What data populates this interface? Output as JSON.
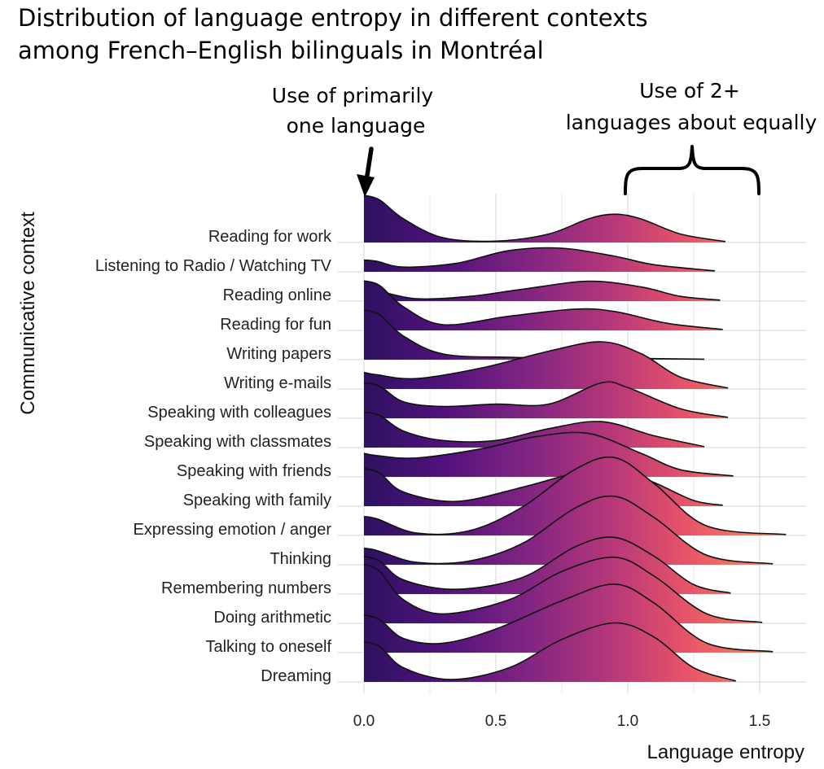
{
  "chart_data": {
    "type": "ridgeline",
    "title": [
      "Distribution of language entropy in different contexts",
      "among French–English bilinguals in Montréal"
    ],
    "xlabel": "Language entropy",
    "ylabel": "Communicative context",
    "xlim": [
      0.0,
      1.68
    ],
    "xticks": [
      0.0,
      0.5,
      1.0,
      1.5
    ],
    "xtick_labels": [
      "0.0",
      "0.5",
      "1.0",
      "1.5"
    ],
    "grid": true,
    "fill": "gradient along x from #2d1160 (low entropy) through #b63779 to #fd7a5c (high entropy)",
    "annotations": [
      {
        "lines": [
          "Use of primarily",
          "one language"
        ],
        "marker": "arrow",
        "points_to": 0.0
      },
      {
        "lines": [
          "Use of 2+",
          "languages about equally"
        ],
        "marker": "brace",
        "x_range": [
          1.0,
          1.5
        ]
      }
    ],
    "series": [
      {
        "name": "Reading for work",
        "x_end": 1.37,
        "density": [
          [
            0,
            1.0
          ],
          [
            0.06,
            0.9
          ],
          [
            0.15,
            0.5
          ],
          [
            0.3,
            0.1
          ],
          [
            0.5,
            0.03
          ],
          [
            0.7,
            0.18
          ],
          [
            0.85,
            0.5
          ],
          [
            0.95,
            0.6
          ],
          [
            1.05,
            0.5
          ],
          [
            1.2,
            0.18
          ],
          [
            1.37,
            0.02
          ]
        ]
      },
      {
        "name": "Listening to Radio / Watching TV",
        "x_end": 1.33,
        "density": [
          [
            0,
            0.25
          ],
          [
            0.05,
            0.22
          ],
          [
            0.15,
            0.1
          ],
          [
            0.35,
            0.18
          ],
          [
            0.55,
            0.45
          ],
          [
            0.75,
            0.5
          ],
          [
            0.95,
            0.33
          ],
          [
            1.1,
            0.15
          ],
          [
            1.33,
            0.02
          ]
        ]
      },
      {
        "name": "Reading online",
        "x_end": 1.35,
        "density": [
          [
            0,
            0.25
          ],
          [
            0.05,
            0.22
          ],
          [
            0.2,
            0.05
          ],
          [
            0.4,
            0.1
          ],
          [
            0.6,
            0.25
          ],
          [
            0.85,
            0.42
          ],
          [
            1.05,
            0.3
          ],
          [
            1.2,
            0.1
          ],
          [
            1.35,
            0.02
          ]
        ]
      },
      {
        "name": "Reading for fun",
        "x_end": 1.36,
        "density": [
          [
            0,
            1.05
          ],
          [
            0.06,
            0.95
          ],
          [
            0.15,
            0.5
          ],
          [
            0.3,
            0.12
          ],
          [
            0.55,
            0.3
          ],
          [
            0.8,
            0.45
          ],
          [
            0.95,
            0.4
          ],
          [
            1.15,
            0.15
          ],
          [
            1.36,
            0.02
          ]
        ]
      },
      {
        "name": "Writing papers",
        "x_end": 1.29,
        "density": [
          [
            0,
            1.05
          ],
          [
            0.06,
            0.95
          ],
          [
            0.15,
            0.5
          ],
          [
            0.3,
            0.12
          ],
          [
            0.55,
            0.05
          ],
          [
            0.8,
            0.04
          ],
          [
            1.0,
            0.03
          ],
          [
            1.29,
            0.01
          ]
        ]
      },
      {
        "name": "Writing e-mails",
        "x_end": 1.38,
        "density": [
          [
            0,
            0.35
          ],
          [
            0.05,
            0.3
          ],
          [
            0.2,
            0.22
          ],
          [
            0.45,
            0.45
          ],
          [
            0.7,
            0.8
          ],
          [
            0.9,
            1.0
          ],
          [
            1.05,
            0.75
          ],
          [
            1.2,
            0.25
          ],
          [
            1.38,
            0.02
          ]
        ]
      },
      {
        "name": "Speaking with colleagues",
        "x_end": 1.38,
        "density": [
          [
            0,
            0.75
          ],
          [
            0.06,
            0.68
          ],
          [
            0.15,
            0.35
          ],
          [
            0.3,
            0.25
          ],
          [
            0.5,
            0.3
          ],
          [
            0.7,
            0.3
          ],
          [
            0.9,
            0.75
          ],
          [
            1.0,
            0.65
          ],
          [
            1.2,
            0.2
          ],
          [
            1.38,
            0.02
          ]
        ]
      },
      {
        "name": "Speaking with classmates",
        "x_end": 1.29,
        "density": [
          [
            0,
            0.75
          ],
          [
            0.06,
            0.68
          ],
          [
            0.15,
            0.35
          ],
          [
            0.3,
            0.15
          ],
          [
            0.5,
            0.15
          ],
          [
            0.7,
            0.4
          ],
          [
            0.9,
            0.55
          ],
          [
            1.1,
            0.25
          ],
          [
            1.29,
            0.02
          ]
        ]
      },
      {
        "name": "Speaking with friends",
        "x_end": 1.4,
        "density": [
          [
            0,
            0.5
          ],
          [
            0.05,
            0.45
          ],
          [
            0.2,
            0.4
          ],
          [
            0.45,
            0.6
          ],
          [
            0.65,
            0.85
          ],
          [
            0.85,
            0.92
          ],
          [
            1.05,
            0.5
          ],
          [
            1.2,
            0.15
          ],
          [
            1.4,
            0.02
          ]
        ]
      },
      {
        "name": "Speaking with family",
        "x_end": 1.36,
        "density": [
          [
            0,
            0.8
          ],
          [
            0.06,
            0.7
          ],
          [
            0.15,
            0.3
          ],
          [
            0.35,
            0.1
          ],
          [
            0.6,
            0.4
          ],
          [
            0.8,
            0.7
          ],
          [
            0.95,
            0.8
          ],
          [
            1.1,
            0.5
          ],
          [
            1.25,
            0.12
          ],
          [
            1.36,
            0.02
          ]
        ]
      },
      {
        "name": "Expressing emotion / anger",
        "x_end": 1.6,
        "density": [
          [
            0,
            0.4
          ],
          [
            0.05,
            0.35
          ],
          [
            0.2,
            0.05
          ],
          [
            0.4,
            0.1
          ],
          [
            0.6,
            0.6
          ],
          [
            0.8,
            1.4
          ],
          [
            0.95,
            1.65
          ],
          [
            1.1,
            1.1
          ],
          [
            1.3,
            0.2
          ],
          [
            1.6,
            0.02
          ]
        ]
      },
      {
        "name": "Thinking",
        "x_end": 1.55,
        "density": [
          [
            0,
            0.35
          ],
          [
            0.05,
            0.3
          ],
          [
            0.2,
            0.05
          ],
          [
            0.4,
            0.08
          ],
          [
            0.6,
            0.45
          ],
          [
            0.8,
            1.2
          ],
          [
            0.95,
            1.45
          ],
          [
            1.1,
            1.0
          ],
          [
            1.3,
            0.2
          ],
          [
            1.55,
            0.02
          ]
        ]
      },
      {
        "name": "Remembering numbers",
        "x_end": 1.39,
        "density": [
          [
            0,
            0.8
          ],
          [
            0.06,
            0.7
          ],
          [
            0.15,
            0.3
          ],
          [
            0.35,
            0.1
          ],
          [
            0.6,
            0.35
          ],
          [
            0.8,
            1.0
          ],
          [
            0.95,
            1.2
          ],
          [
            1.1,
            0.8
          ],
          [
            1.25,
            0.2
          ],
          [
            1.39,
            0.02
          ]
        ]
      },
      {
        "name": "Doing arithmetic",
        "x_end": 1.51,
        "density": [
          [
            0,
            1.25
          ],
          [
            0.06,
            1.1
          ],
          [
            0.15,
            0.5
          ],
          [
            0.3,
            0.2
          ],
          [
            0.55,
            0.5
          ],
          [
            0.75,
            1.1
          ],
          [
            0.95,
            1.4
          ],
          [
            1.1,
            1.0
          ],
          [
            1.3,
            0.2
          ],
          [
            1.51,
            0.02
          ]
        ]
      },
      {
        "name": "Talking to oneself",
        "x_end": 1.55,
        "density": [
          [
            0,
            0.8
          ],
          [
            0.06,
            0.7
          ],
          [
            0.15,
            0.3
          ],
          [
            0.3,
            0.2
          ],
          [
            0.5,
            0.5
          ],
          [
            0.75,
            1.1
          ],
          [
            0.95,
            1.45
          ],
          [
            1.1,
            1.05
          ],
          [
            1.3,
            0.2
          ],
          [
            1.55,
            0.02
          ]
        ]
      },
      {
        "name": "Dreaming",
        "x_end": 1.41,
        "density": [
          [
            0,
            0.85
          ],
          [
            0.06,
            0.75
          ],
          [
            0.15,
            0.3
          ],
          [
            0.33,
            0.05
          ],
          [
            0.55,
            0.3
          ],
          [
            0.75,
            0.9
          ],
          [
            0.95,
            1.25
          ],
          [
            1.1,
            0.95
          ],
          [
            1.25,
            0.3
          ],
          [
            1.41,
            0.02
          ]
        ]
      }
    ]
  }
}
